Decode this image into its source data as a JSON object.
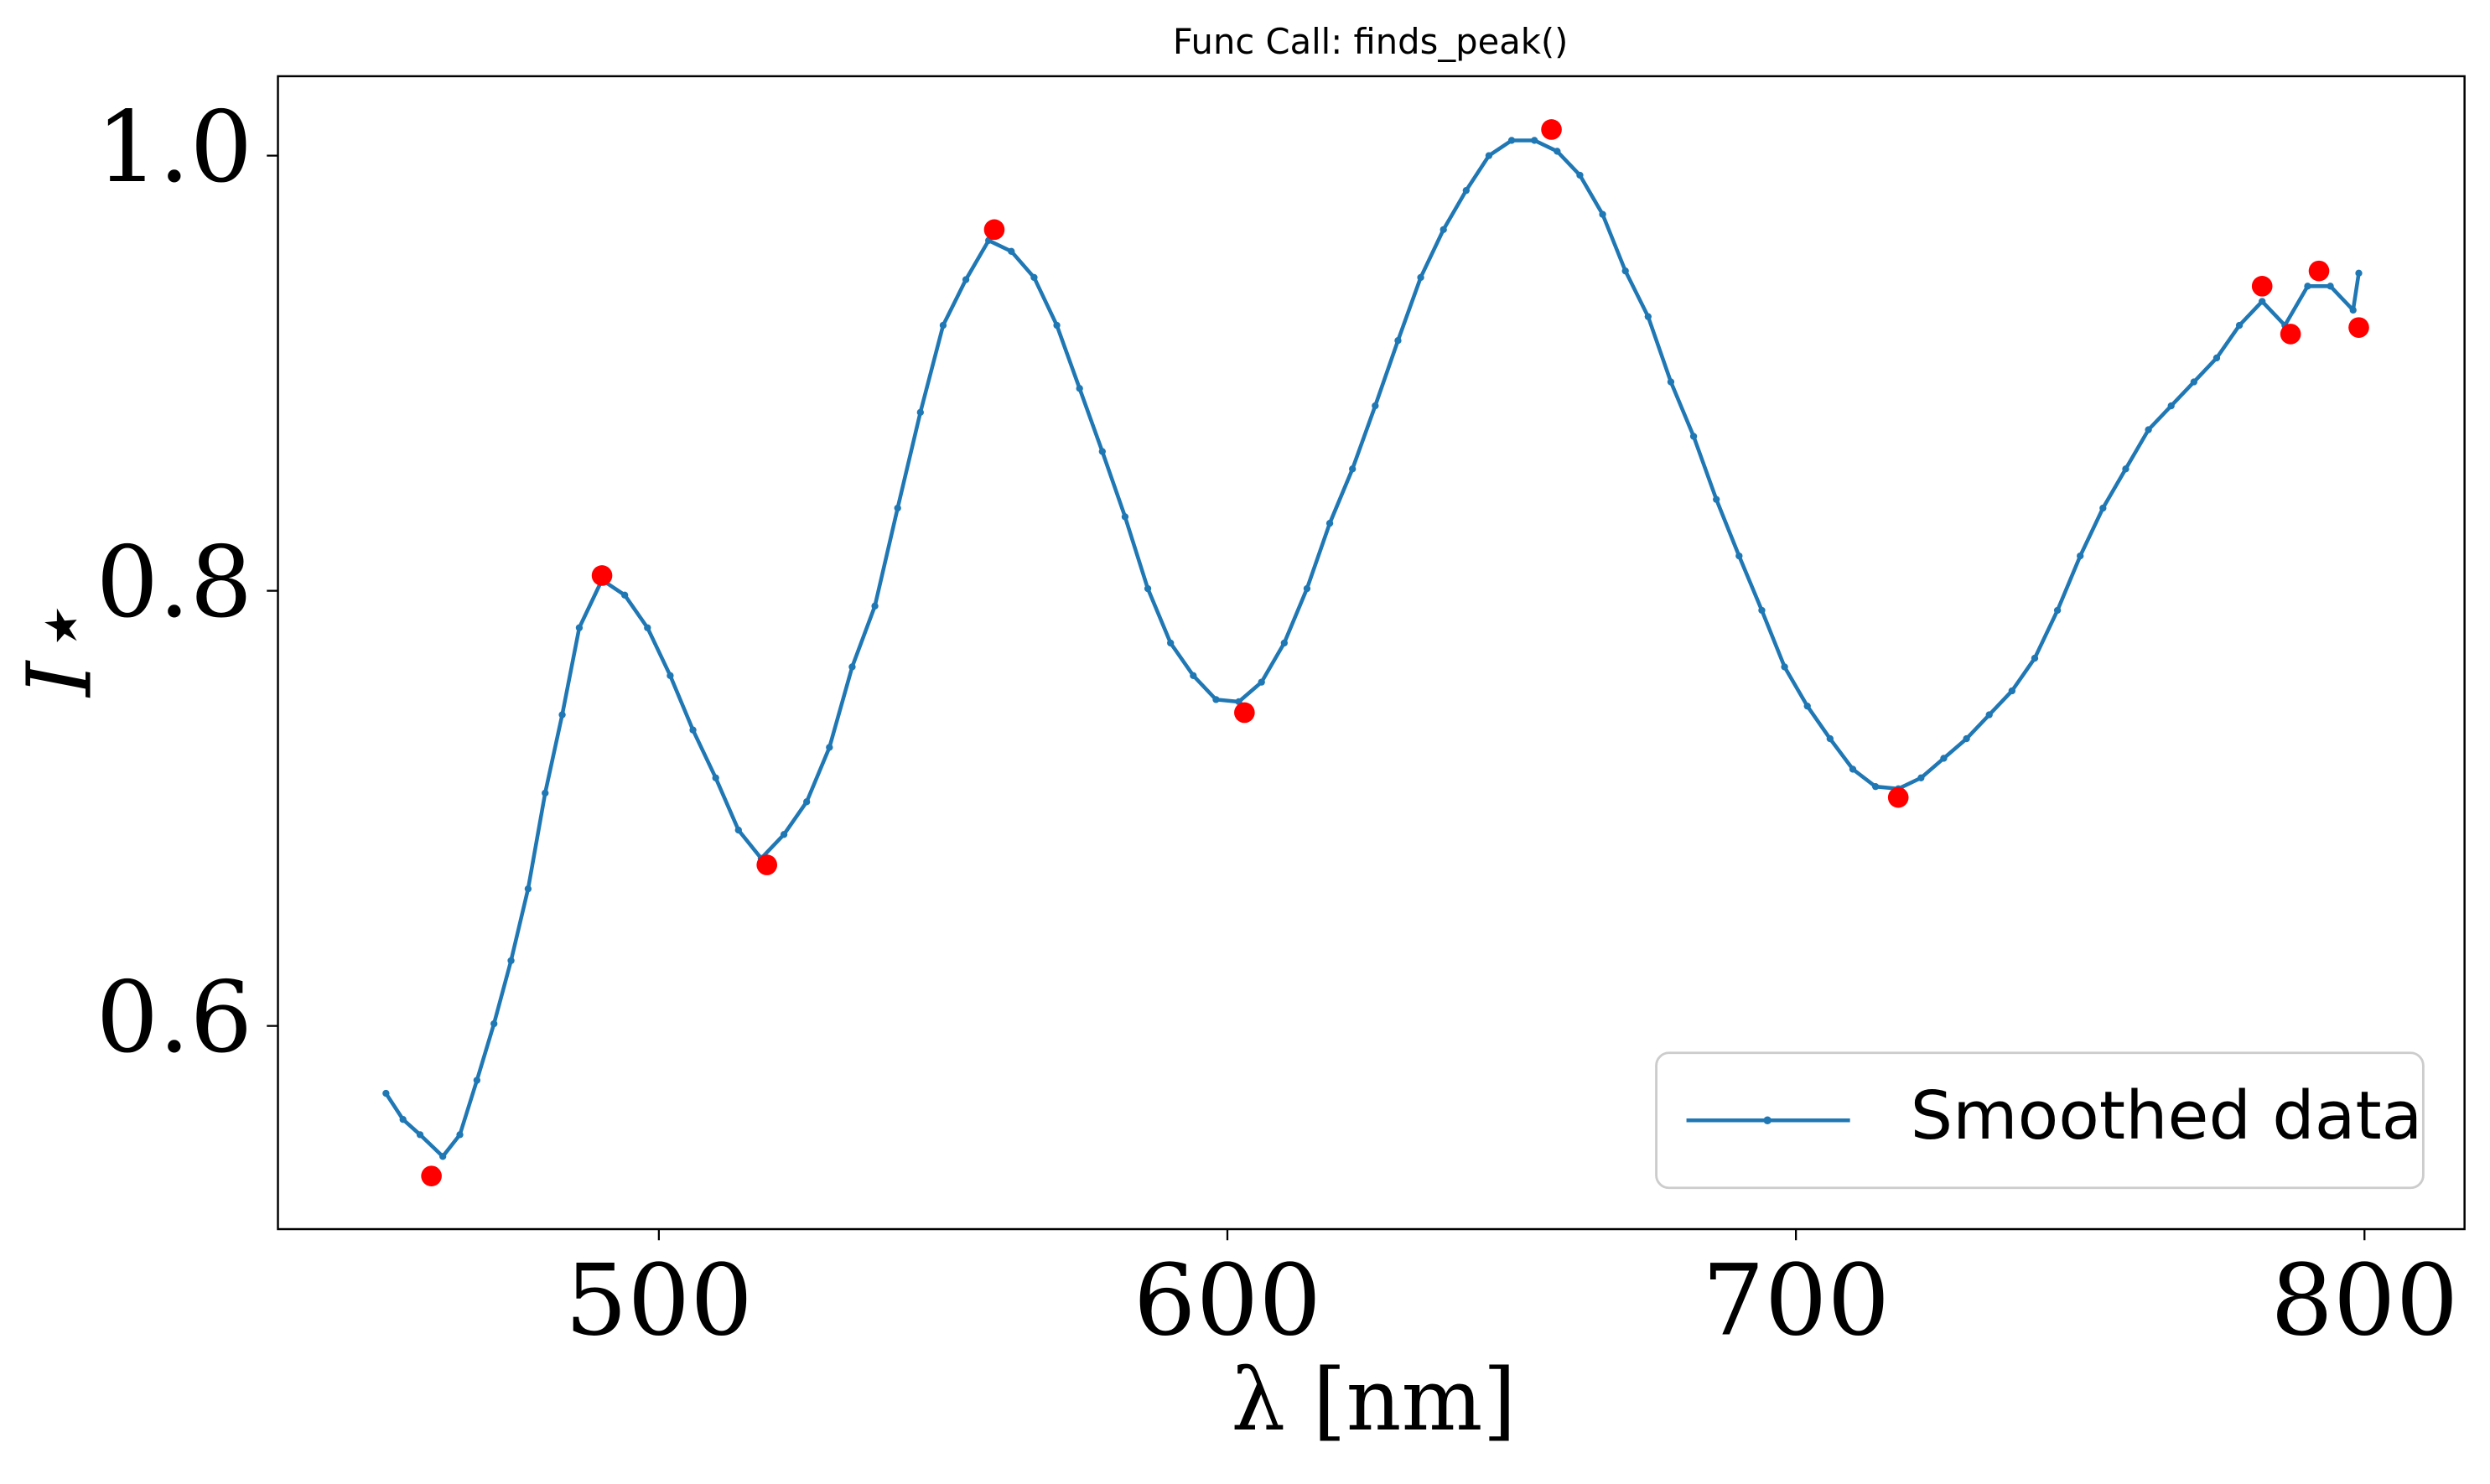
{
  "chart_data": {
    "type": "line",
    "title": "Func Call: finds_peak()",
    "x_label": "λ [nm]",
    "y_label": "I⋆",
    "xlim": [
      433,
      817.6
    ],
    "ylim": [
      0.5066,
      1.0365
    ],
    "xticks": [
      500,
      600,
      700,
      800
    ],
    "yticks": [
      0.6,
      0.8,
      {
        "value": 1.0,
        "label": "1.0"
      }
    ],
    "legend": "lower right",
    "series": [
      {
        "name": "Smoothed data",
        "color": "#1f77b4",
        "marker": "dot",
        "x": [
          452,
          455,
          458,
          462,
          465,
          468,
          471,
          474,
          477,
          480,
          483,
          486,
          490,
          494,
          498,
          502,
          506,
          510,
          514,
          518,
          522,
          526,
          530,
          534,
          538,
          542,
          546,
          550,
          554,
          558,
          562,
          566,
          570,
          574,
          578,
          582,
          586,
          590,
          594,
          598,
          602,
          606,
          610,
          614,
          618,
          622,
          626,
          630,
          634,
          638,
          642,
          646,
          650,
          654,
          658,
          662,
          666,
          670,
          674,
          678,
          682,
          686,
          690,
          694,
          698,
          702,
          706,
          710,
          714,
          718,
          722,
          726,
          730,
          734,
          738,
          742,
          746,
          750,
          754,
          758,
          762,
          766,
          770,
          774,
          778,
          782,
          786,
          790,
          794,
          798,
          799
        ],
        "values": [
          0.569,
          0.557,
          0.55,
          0.54,
          0.55,
          0.575,
          0.601,
          0.63,
          0.663,
          0.707,
          0.743,
          0.783,
          0.805,
          0.798,
          0.783,
          0.761,
          0.736,
          0.714,
          0.69,
          0.677,
          0.688,
          0.703,
          0.728,
          0.765,
          0.793,
          0.838,
          0.882,
          0.922,
          0.943,
          0.961,
          0.956,
          0.944,
          0.922,
          0.893,
          0.864,
          0.834,
          0.801,
          0.776,
          0.761,
          0.75,
          0.749,
          0.758,
          0.776,
          0.801,
          0.831,
          0.856,
          0.885,
          0.915,
          0.944,
          0.966,
          0.984,
          1.0,
          1.007,
          1.007,
          1.002,
          0.991,
          0.973,
          0.947,
          0.926,
          0.896,
          0.871,
          0.842,
          0.816,
          0.791,
          0.765,
          0.747,
          0.732,
          0.718,
          0.71,
          0.709,
          0.714,
          0.723,
          0.732,
          0.743,
          0.754,
          0.769,
          0.791,
          0.816,
          0.838,
          0.856,
          0.874,
          0.885,
          0.896,
          0.907,
          0.922,
          0.933,
          0.922,
          0.94,
          0.94,
          0.929,
          0.946
        ]
      },
      {
        "color": "#ff0000",
        "marker": "circle",
        "line": false,
        "x": [
          460,
          490,
          519,
          559,
          603,
          657,
          718,
          782,
          787,
          792,
          799
        ],
        "values": [
          0.531,
          0.807,
          0.674,
          0.966,
          0.744,
          1.012,
          0.705,
          0.94,
          0.918,
          0.947,
          0.921
        ]
      }
    ]
  }
}
